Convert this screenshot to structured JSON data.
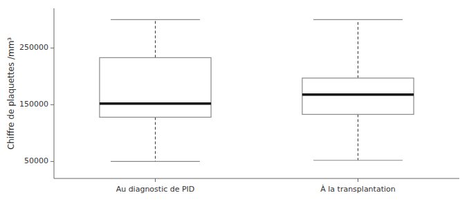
{
  "chart_data": {
    "type": "box",
    "categories": [
      "Au diagnostic de PID",
      "À la transplantation"
    ],
    "ylabel": "Chiffre de plaquettes /mm³",
    "boxes": [
      {
        "whisker_low": 50000,
        "q1": 128000,
        "median": 152000,
        "q3": 233000,
        "whisker_high": 300000
      },
      {
        "whisker_low": 52000,
        "q1": 133000,
        "median": 168000,
        "q3": 197000,
        "whisker_high": 300000
      }
    ],
    "color": "#888888",
    "ylim": [
      20000,
      320000
    ],
    "yticks": [
      50000,
      150000,
      250000
    ],
    "grid": false
  }
}
